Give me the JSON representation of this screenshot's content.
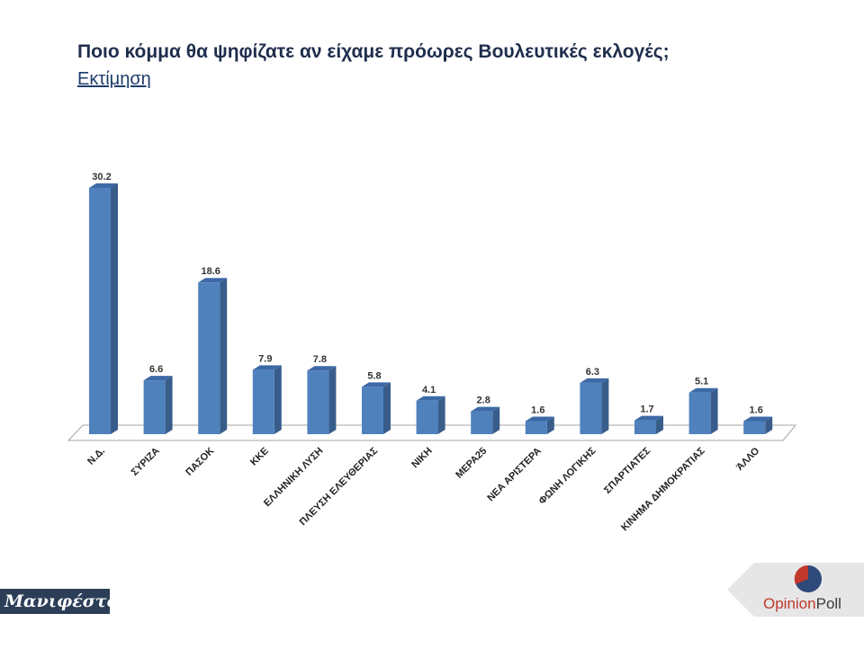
{
  "title": "Ποιο κόμμα θα ψηφίζατε αν είχαμε πρόωρες Βουλευτικές εκλογές;",
  "subtitle": "Εκτίμηση",
  "logos": {
    "left": "Μανιφέστο",
    "right_part1": "Opinion",
    "right_part2": "Poll"
  },
  "colors": {
    "bar_front": "#4f81bd",
    "bar_side": "#385d8a",
    "bar_top": "#3d6aa6",
    "floor": "#ffffff",
    "floor_edge": "#a6a6a6",
    "logo_left_bg": "#2c3e57",
    "logo_right_red": "#c0392b",
    "logo_right_blue": "#2e4a7a"
  },
  "chart_data": {
    "type": "bar",
    "categories": [
      "Ν.Δ.",
      "ΣΥΡΙΖΑ",
      "ΠΑΣΟΚ",
      "ΚΚΕ",
      "ΕΛΛΗΝΙΚΗ ΛΥΣΗ",
      "ΠΛΕΥΣΗ ΕΛΕΥΘΕΡΙΑΣ",
      "ΝΙΚΗ",
      "ΜΕΡΑ25",
      "ΝΕΑ ΑΡΙΣΤΕΡΑ",
      "ΦΩΝΗ ΛΟΓΙΚΗΣ",
      "ΣΠΑΡΤΙΑΤΕΣ",
      "ΚΙΝΗΜΑ ΔΗΜΟΚΡΑΤΙΑΣ",
      "ΆΛΛΟ"
    ],
    "values": [
      30.2,
      6.6,
      18.6,
      7.9,
      7.8,
      5.8,
      4.1,
      2.8,
      1.6,
      6.3,
      1.7,
      5.1,
      1.6
    ],
    "data_labels": [
      "30.2",
      "6.6",
      "18.6",
      "7.9",
      "7.8",
      "5.8",
      "4.1",
      "2.8",
      "1.6",
      "6.3",
      "1.7",
      "5.1",
      "1.6"
    ],
    "ylim": [
      0,
      30.2
    ],
    "grid": false,
    "legend": "none",
    "style": "3d-column"
  }
}
